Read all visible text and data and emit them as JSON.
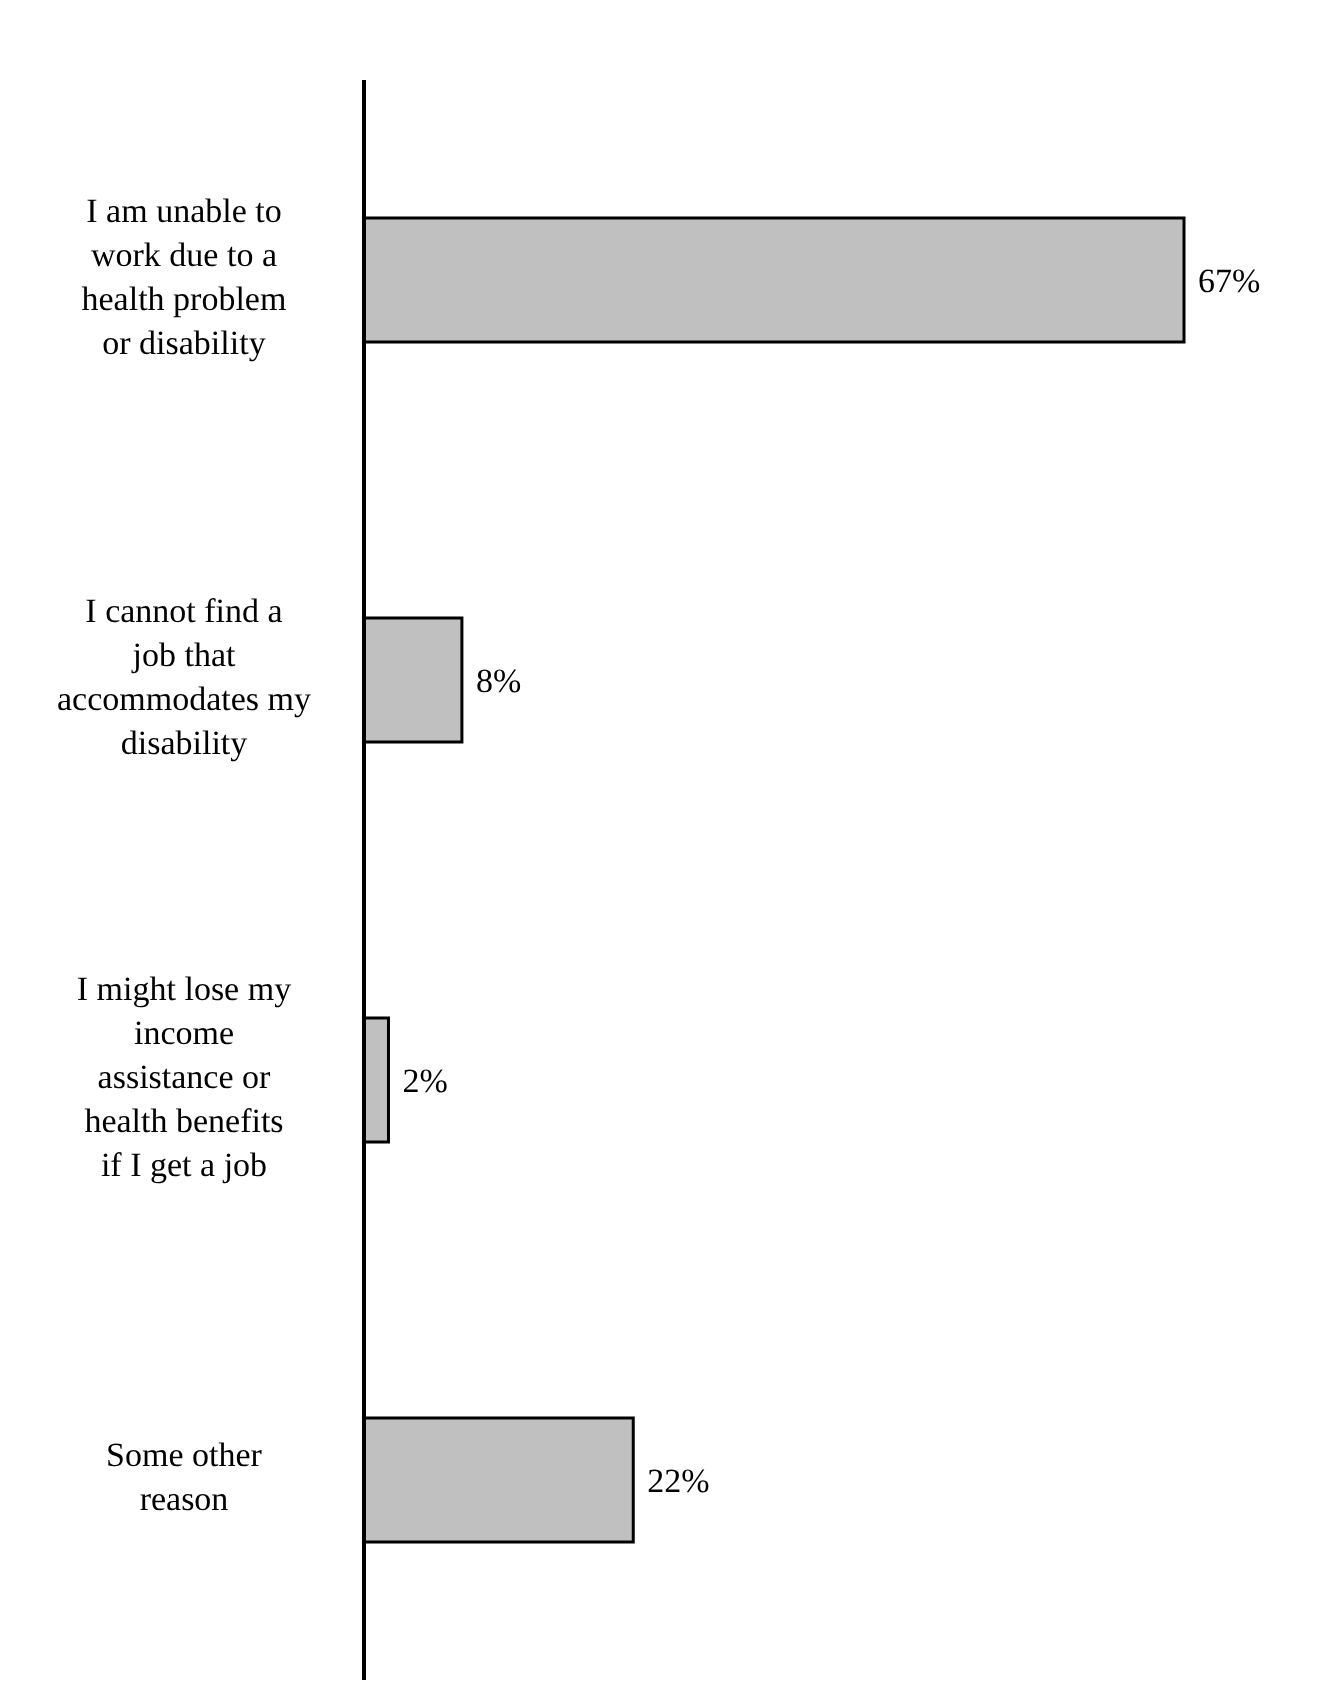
{
  "chart_data": {
    "type": "bar",
    "orientation": "horizontal",
    "categories": [
      "I am unable to work due to a health problem or disability",
      "I cannot find a job that accommodates my disability",
      "I might lose my income assistance or health benefits if I get a job",
      "Some other reason"
    ],
    "values": [
      67,
      8,
      2,
      22
    ],
    "value_labels": [
      "67%",
      "8%",
      "2%",
      "22%"
    ],
    "color": "#c0c0c0"
  }
}
